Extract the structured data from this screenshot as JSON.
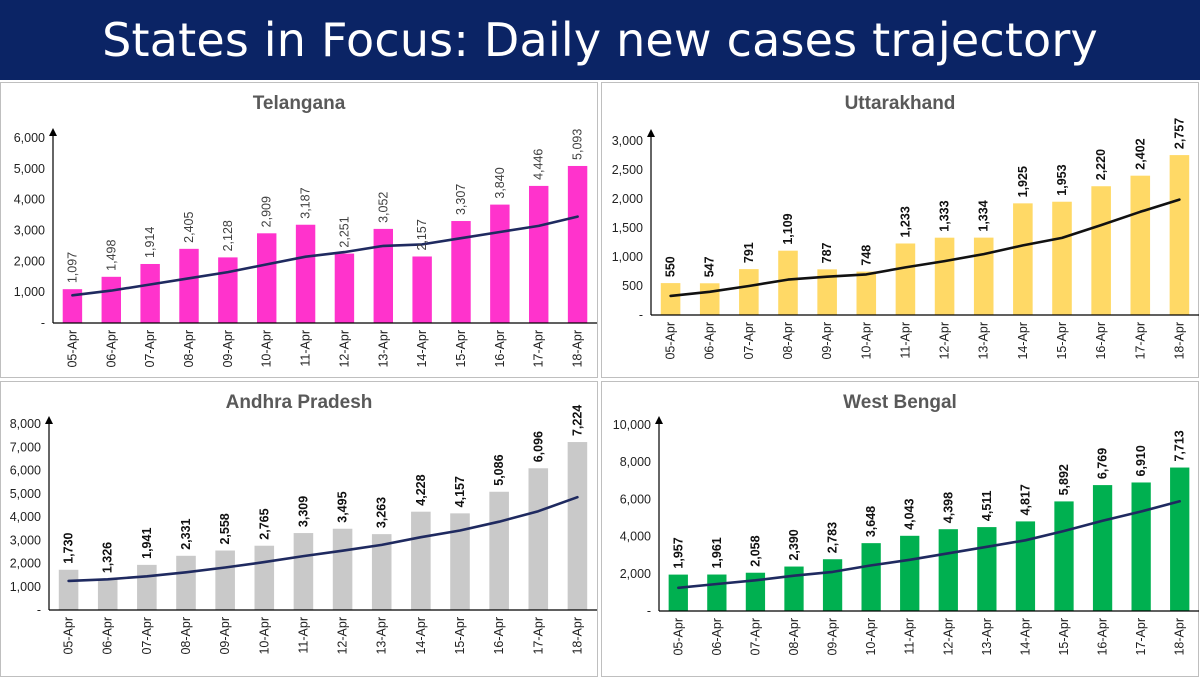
{
  "header": {
    "title": "States in Focus: Daily new cases trajectory"
  },
  "chart_data": [
    {
      "type": "bar",
      "title": "Telangana",
      "categories": [
        "05-Apr",
        "06-Apr",
        "07-Apr",
        "08-Apr",
        "09-Apr",
        "10-Apr",
        "11-Apr",
        "12-Apr",
        "13-Apr",
        "14-Apr",
        "15-Apr",
        "16-Apr",
        "17-Apr",
        "18-Apr"
      ],
      "values": [
        1097,
        1498,
        1914,
        2405,
        2128,
        2909,
        3187,
        2251,
        3052,
        2157,
        3307,
        3840,
        4446,
        5093
      ],
      "value_labels": [
        "1,097",
        "1,498",
        "1,914",
        "2,405",
        "2,128",
        "2,909",
        "3,187",
        "2,251",
        "3,052",
        "2,157",
        "3,307",
        "3,840",
        "4,446",
        "5,093"
      ],
      "trend": [
        900,
        1050,
        1250,
        1450,
        1650,
        1900,
        2150,
        2300,
        2500,
        2550,
        2750,
        2950,
        3150,
        3450
      ],
      "ylim": [
        0,
        6000
      ],
      "yticks": [
        0,
        1000,
        2000,
        3000,
        4000,
        5000,
        6000
      ],
      "ytick_labels": [
        "-",
        "1,000",
        "2,000",
        "3,000",
        "4,000",
        "5,000",
        "6,000"
      ],
      "bar_color": "#ff33cc",
      "trend_color": "#1f2a60",
      "label_style": "normal"
    },
    {
      "type": "bar",
      "title": "Uttarakhand",
      "categories": [
        "05-Apr",
        "06-Apr",
        "07-Apr",
        "08-Apr",
        "09-Apr",
        "10-Apr",
        "11-Apr",
        "12-Apr",
        "13-Apr",
        "14-Apr",
        "15-Apr",
        "16-Apr",
        "17-Apr",
        "18-Apr"
      ],
      "values": [
        550,
        547,
        791,
        1109,
        787,
        748,
        1233,
        1333,
        1334,
        1925,
        1953,
        2220,
        2402,
        2757
      ],
      "value_labels": [
        "550",
        "547",
        "791",
        "1,109",
        "787",
        "748",
        "1,233",
        "1,333",
        "1,334",
        "1,925",
        "1,953",
        "2,220",
        "2,402",
        "2,757"
      ],
      "trend": [
        330,
        400,
        500,
        610,
        660,
        700,
        820,
        930,
        1050,
        1200,
        1330,
        1550,
        1780,
        1990
      ],
      "ylim": [
        0,
        3000
      ],
      "yticks": [
        0,
        500,
        1000,
        1500,
        2000,
        2500,
        3000
      ],
      "ytick_labels": [
        "-",
        "500",
        "1,000",
        "1,500",
        "2,000",
        "2,500",
        "3,000"
      ],
      "bar_color": "#ffd966",
      "trend_color": "#111111",
      "label_style": "bold"
    },
    {
      "type": "bar",
      "title": "Andhra Pradesh",
      "categories": [
        "05-Apr",
        "06-Apr",
        "07-Apr",
        "08-Apr",
        "09-Apr",
        "10-Apr",
        "11-Apr",
        "12-Apr",
        "13-Apr",
        "14-Apr",
        "15-Apr",
        "16-Apr",
        "17-Apr",
        "18-Apr"
      ],
      "values": [
        1730,
        1326,
        1941,
        2331,
        2558,
        2765,
        3309,
        3495,
        3263,
        4228,
        4157,
        5086,
        6096,
        7224
      ],
      "value_labels": [
        "1,730",
        "1,326",
        "1,941",
        "2,331",
        "2,558",
        "2,765",
        "3,309",
        "3,495",
        "3,263",
        "4,228",
        "4,157",
        "5,086",
        "6,096",
        "7,224"
      ],
      "trend": [
        1250,
        1320,
        1450,
        1620,
        1830,
        2060,
        2320,
        2550,
        2800,
        3130,
        3420,
        3800,
        4250,
        4850
      ],
      "ylim": [
        0,
        8000
      ],
      "yticks": [
        0,
        1000,
        2000,
        3000,
        4000,
        5000,
        6000,
        7000,
        8000
      ],
      "ytick_labels": [
        "-",
        "1,000",
        "2,000",
        "3,000",
        "4,000",
        "5,000",
        "6,000",
        "7,000",
        "8,000"
      ],
      "bar_color": "#c9c9c9",
      "trend_color": "#1f2a60",
      "label_style": "bold"
    },
    {
      "type": "bar",
      "title": "West Bengal",
      "categories": [
        "05-Apr",
        "06-Apr",
        "07-Apr",
        "08-Apr",
        "09-Apr",
        "10-Apr",
        "11-Apr",
        "12-Apr",
        "13-Apr",
        "14-Apr",
        "15-Apr",
        "16-Apr",
        "17-Apr",
        "18-Apr"
      ],
      "values": [
        1957,
        1961,
        2058,
        2390,
        2783,
        3648,
        4043,
        4398,
        4511,
        4817,
        5892,
        6769,
        6910,
        7713
      ],
      "value_labels": [
        "1,957",
        "1,961",
        "2,058",
        "2,390",
        "2,783",
        "3,648",
        "4,043",
        "4,398",
        "4,511",
        "4,817",
        "5,892",
        "6,769",
        "6,910",
        "7,713"
      ],
      "trend": [
        1250,
        1450,
        1650,
        1900,
        2100,
        2450,
        2750,
        3100,
        3450,
        3800,
        4300,
        4850,
        5350,
        5900
      ],
      "ylim": [
        0,
        10000
      ],
      "yticks": [
        0,
        2000,
        4000,
        6000,
        8000,
        10000
      ],
      "ytick_labels": [
        "-",
        "2,000",
        "4,000",
        "6,000",
        "8,000",
        "10,000"
      ],
      "bar_color": "#00b050",
      "trend_color": "#1f2a60",
      "label_style": "bold"
    }
  ]
}
